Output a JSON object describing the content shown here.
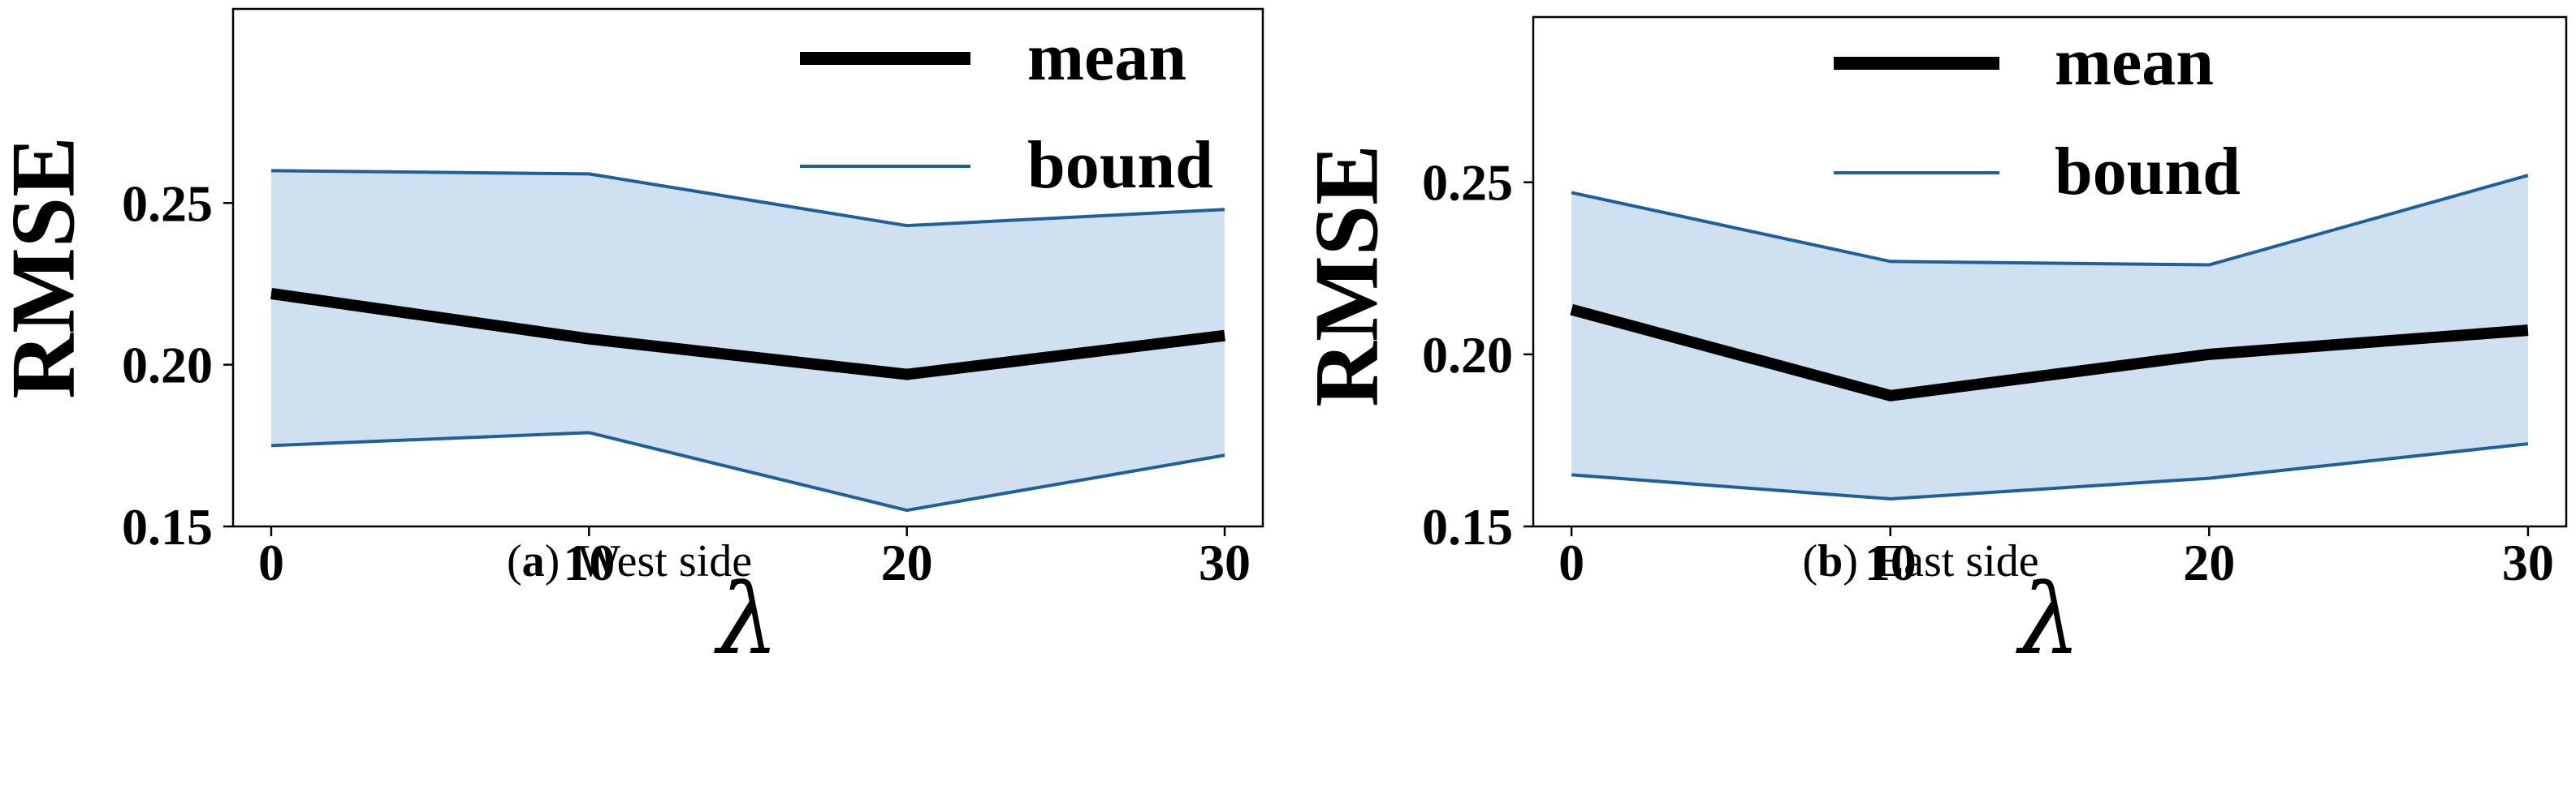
{
  "figure": {
    "panels": [
      {
        "caption": {
          "label": "a",
          "text": "West side"
        }
      },
      {
        "caption": {
          "label": "b",
          "text": "East side"
        }
      }
    ]
  },
  "colors": {
    "mean_line": "#000000",
    "bound_line": "#1f5f9a",
    "band_fill": "#cfe0f0",
    "axis": "#000000"
  },
  "chart_data": [
    {
      "type": "line",
      "title": "",
      "xlabel": "λ",
      "ylabel": "RMSE",
      "x": [
        0,
        10,
        20,
        30
      ],
      "xticks": [
        "0",
        "10",
        "20",
        "30"
      ],
      "xlim": [
        -1.2,
        31.2
      ],
      "yticks": [
        "0.15",
        "0.20",
        "0.25"
      ],
      "ylim": [
        0.15,
        0.31
      ],
      "legend": {
        "position": "top-right",
        "entries": [
          "mean",
          "bound"
        ]
      },
      "series": [
        {
          "name": "mean",
          "values": [
            0.222,
            0.208,
            0.197,
            0.209
          ]
        },
        {
          "name": "bound",
          "upper": [
            0.26,
            0.259,
            0.243,
            0.248
          ],
          "lower": [
            0.175,
            0.179,
            0.155,
            0.172
          ]
        }
      ]
    },
    {
      "type": "line",
      "title": "",
      "xlabel": "λ",
      "ylabel": "RMSE",
      "x": [
        0,
        10,
        20,
        30
      ],
      "xticks": [
        "0",
        "10",
        "20",
        "30"
      ],
      "xlim": [
        -1.2,
        31.2
      ],
      "yticks": [
        "0.15",
        "0.20",
        "0.25"
      ],
      "ylim": [
        0.15,
        0.298
      ],
      "legend": {
        "position": "top-center",
        "entries": [
          "mean",
          "bound"
        ]
      },
      "series": [
        {
          "name": "mean",
          "values": [
            0.213,
            0.188,
            0.2,
            0.207
          ]
        },
        {
          "name": "bound",
          "upper": [
            0.247,
            0.227,
            0.226,
            0.252
          ],
          "lower": [
            0.165,
            0.158,
            0.164,
            0.174
          ]
        }
      ]
    }
  ]
}
